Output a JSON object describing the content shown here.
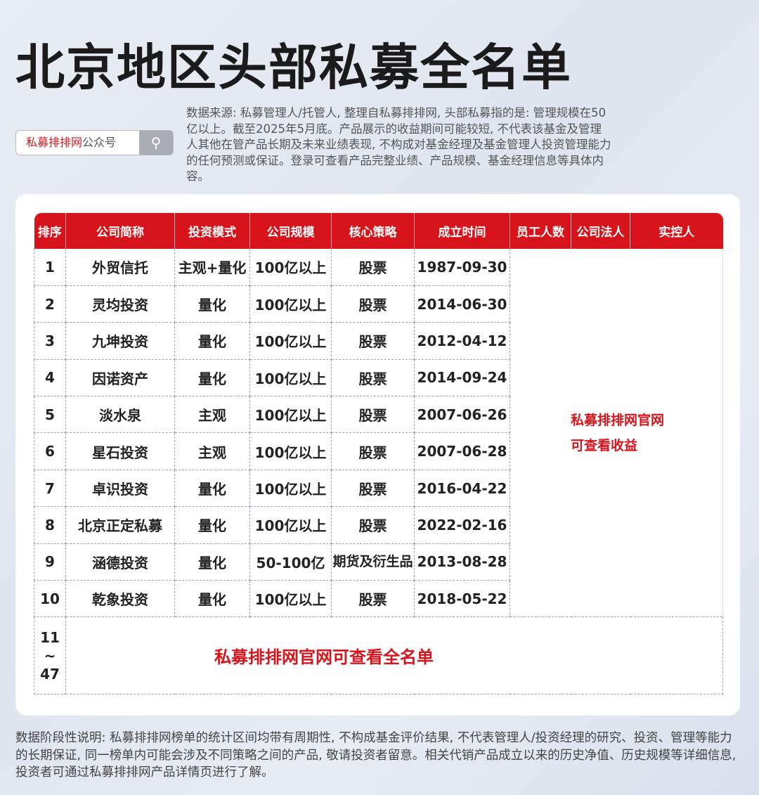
{
  "title": "北京地区头部私募全名单",
  "search": {
    "brand": "私募排排网",
    "suffix": "公众号",
    "icon": "search-icon"
  },
  "source": "数据来源: 私募管理人/托管人, 整理自私募排排网, 头部私募指的是: 管理规模在50亿以上。截至2025年5月底。产品展示的收益期间可能较短, 不代表该基金及管理人其他在管产品长期及未来业绩表现, 不构成对基金经理及基金管理人投资管理能力的任何预测或保证。登录可查看产品完整业绩、产品规模、基金经理信息等具体内容。",
  "table": {
    "headers": [
      "排序",
      "公司简称",
      "投资模式",
      "公司规模",
      "核心策略",
      "成立时间",
      "员工人数",
      "公司法人",
      "实控人"
    ],
    "rows": [
      [
        "1",
        "外贸信托",
        "主观+量化",
        "100亿以上",
        "股票",
        "1987-09-30"
      ],
      [
        "2",
        "灵均投资",
        "量化",
        "100亿以上",
        "股票",
        "2014-06-30"
      ],
      [
        "3",
        "九坤投资",
        "量化",
        "100亿以上",
        "股票",
        "2012-04-12"
      ],
      [
        "4",
        "因诺资产",
        "量化",
        "100亿以上",
        "股票",
        "2014-09-24"
      ],
      [
        "5",
        "淡水泉",
        "主观",
        "100亿以上",
        "股票",
        "2007-06-26"
      ],
      [
        "6",
        "星石投资",
        "主观",
        "100亿以上",
        "股票",
        "2007-06-28"
      ],
      [
        "7",
        "卓识投资",
        "量化",
        "100亿以上",
        "股票",
        "2016-04-22"
      ],
      [
        "8",
        "北京正定私募",
        "量化",
        "100亿以上",
        "股票",
        "2022-02-16"
      ],
      [
        "9",
        "涵德投资",
        "量化",
        "50-100亿",
        "期货及衍生品",
        "2013-08-28"
      ],
      [
        "10",
        "乾象投资",
        "量化",
        "100亿以上",
        "股票",
        "2018-05-22"
      ]
    ],
    "side_note_1": "私募排排网官网",
    "side_note_2": "可查看收益",
    "rest_rank_from": "11",
    "rest_rank_sep": "~",
    "rest_rank_to": "47",
    "rest_note": "私募排排网官网可查看全名单"
  },
  "footnote": "数据阶段性说明: 私募排排网榜单的统计区间均带有周期性, 不构成基金评价结果, 不代表管理人/投资经理的研究、投资、管理等能力的长期保证, 同一榜单内可能会涉及不同策略之间的产品, 敬请投资者留意。相关代销产品成立以来的历史净值、历史规模等详细信息, 投资者可通过私募排排网产品详情页进行了解。",
  "colors": {
    "accent": "#d7141b"
  }
}
